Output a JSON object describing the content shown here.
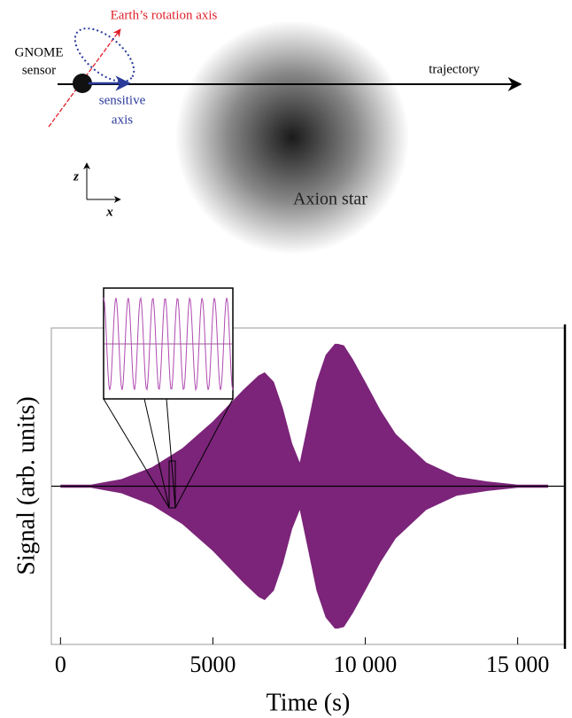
{
  "diagram": {
    "rotation_label": "Earth’s rotation axis",
    "sensor_label": [
      "GNOME",
      "sensor"
    ],
    "sensitive_label": [
      "sensitive",
      "axis"
    ],
    "trajectory_label": "trajectory",
    "star_label": "Axion star",
    "z_label": "z",
    "x_label": "x"
  },
  "chart_data": {
    "type": "area",
    "xlabel": "Time (s)",
    "ylabel": "Signal (arb. units)",
    "color": "#7b2479",
    "x": [
      0,
      1000,
      2000,
      3000,
      4000,
      5000,
      5500,
      6000,
      6500,
      6700,
      7000,
      7300,
      7600,
      7850,
      8100,
      8400,
      8700,
      9000,
      9100,
      9300,
      9600,
      10000,
      10500,
      11000,
      12000,
      13000,
      14000,
      15000,
      16000
    ],
    "values": [
      0.01,
      0.01,
      0.045,
      0.12,
      0.24,
      0.41,
      0.51,
      0.61,
      0.7,
      0.72,
      0.66,
      0.49,
      0.27,
      0.15,
      0.38,
      0.66,
      0.83,
      0.9,
      0.9,
      0.89,
      0.8,
      0.66,
      0.48,
      0.33,
      0.15,
      0.06,
      0.03,
      0.01,
      0.01
    ],
    "xlim": [
      -300,
      16550
    ],
    "ylim": [
      -1,
      1
    ],
    "xticks": [
      0,
      5000,
      {
        "value": 10000,
        "label": "10 000"
      },
      {
        "value": 15000,
        "label": "15 000"
      }
    ]
  }
}
